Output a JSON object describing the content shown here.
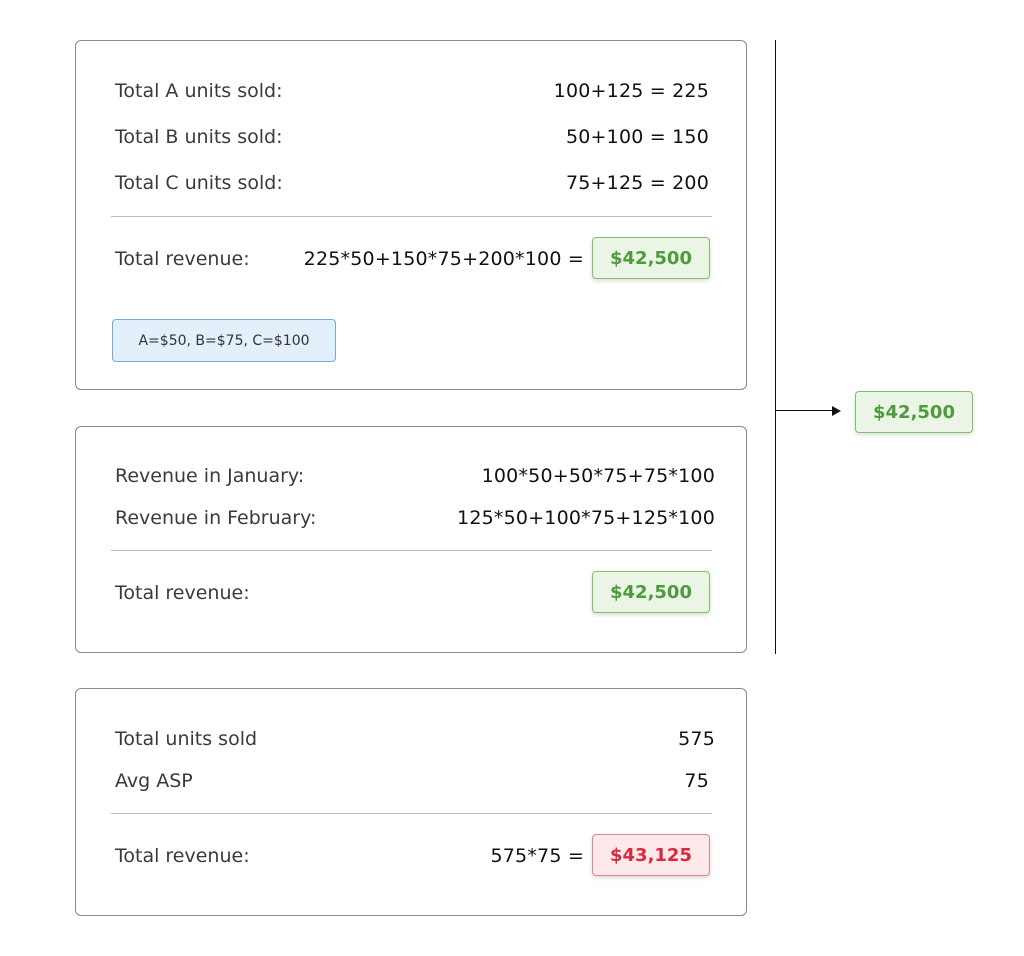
{
  "card1": {
    "rows": [
      {
        "label": "Total A units sold:",
        "value": "100+125 = 225"
      },
      {
        "label": "Total B units sold:",
        "value": "50+100 = 150"
      },
      {
        "label": "Total C units sold:",
        "value": "75+125 = 200"
      }
    ],
    "total_label": "Total revenue:",
    "total_formula": "225*50+150*75+200*100 =",
    "total_value": "$42,500",
    "prices": "A=$50,  B=$75,  C=$100"
  },
  "card2": {
    "rows": [
      {
        "label": "Revenue in January:",
        "value": "100*50+50*75+75*100"
      },
      {
        "label": "Revenue in February:",
        "value": "125*50+100*75+125*100"
      }
    ],
    "total_label": "Total revenue:",
    "total_value": "$42,500"
  },
  "card3": {
    "rows": [
      {
        "label": "Total units sold",
        "value": "575"
      },
      {
        "label": "Avg ASP",
        "value": "75"
      }
    ],
    "total_label": "Total revenue:",
    "total_formula": "575*75 =",
    "total_value": "$43,125"
  },
  "result": {
    "value": "$42,500"
  },
  "colors": {
    "correct_green": "#4e9a3d",
    "incorrect_red": "#d9283f",
    "price_tag_blue": "#e3effb"
  }
}
